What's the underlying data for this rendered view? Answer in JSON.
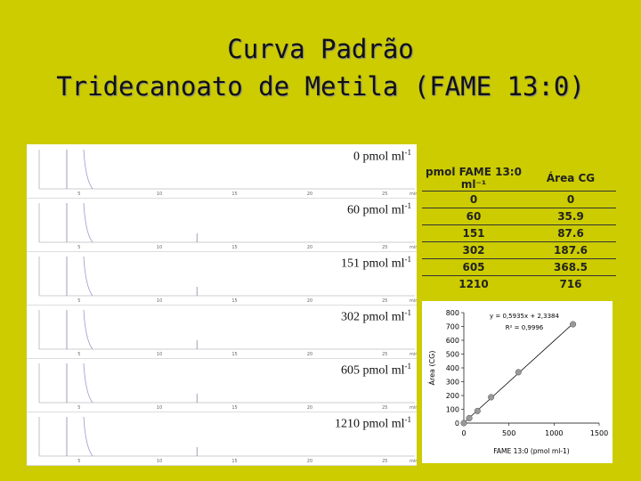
{
  "title": {
    "line1": "Curva Padrão",
    "line2": "Tridecanoato de Metila (FAME 13:0)"
  },
  "chromatograms": {
    "unit": "pmol ml",
    "sup": "-1",
    "panels": [
      {
        "conc": "0"
      },
      {
        "conc": "60"
      },
      {
        "conc": "151"
      },
      {
        "conc": "302"
      },
      {
        "conc": "605"
      },
      {
        "conc": "1210"
      }
    ],
    "x_ticks": [
      "5",
      "10",
      "15",
      "20",
      "25",
      "min"
    ]
  },
  "table": {
    "headers": [
      "pmol FAME 13:0 ml⁻¹",
      "Área CG"
    ],
    "rows": [
      [
        "0",
        "0"
      ],
      [
        "60",
        "35.9"
      ],
      [
        "151",
        "87.6"
      ],
      [
        "302",
        "187.6"
      ],
      [
        "605",
        "368.5"
      ],
      [
        "1210",
        "716"
      ]
    ]
  },
  "chart_data": {
    "type": "scatter",
    "x": [
      0,
      60,
      151,
      302,
      605,
      1210
    ],
    "y": [
      0,
      35.9,
      87.6,
      187.6,
      368.5,
      716
    ],
    "trendline": {
      "slope": 0.5935,
      "intercept": 2.3384
    },
    "equation": "y = 0,5935x + 2,3384",
    "r2": "R² = 0,9996",
    "xlabel": "FAME 13:0 (pmol ml-1)",
    "ylabel": "Área (CG)",
    "xlim": [
      0,
      1500
    ],
    "ylim": [
      0,
      800
    ],
    "x_ticks": [
      "0",
      "500",
      "1000",
      "1500"
    ],
    "y_ticks": [
      "0",
      "100",
      "200",
      "300",
      "400",
      "500",
      "600",
      "700",
      "800"
    ],
    "marker_color": "#999999",
    "grid": false
  }
}
